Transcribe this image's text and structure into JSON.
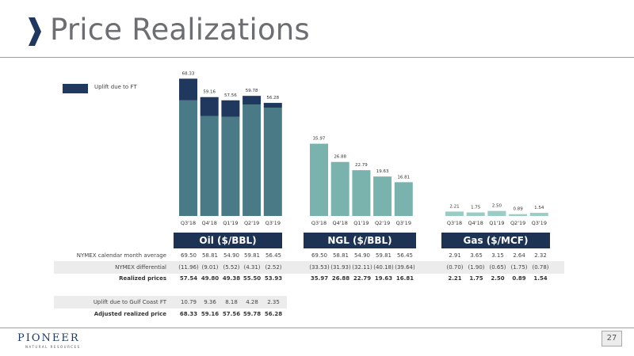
{
  "title": "Price Realizations",
  "legend": {
    "label": "Uplift due to FT",
    "color": "#20385e"
  },
  "colors": {
    "oil": "#4a7a85",
    "ngl": "#7ab3ad",
    "gas": "#98ccc4",
    "uplift": "#20385e",
    "panel": "#1e3354"
  },
  "chart_data": [
    {
      "type": "bar",
      "title": "Oil ($/BBL)",
      "categories": [
        "Q3'18",
        "Q4'18",
        "Q1'19",
        "Q2'19",
        "Q3'19"
      ],
      "series": [
        {
          "name": "Realized prices",
          "values": [
            57.54,
            49.8,
            49.38,
            55.5,
            53.93
          ]
        },
        {
          "name": "Uplift due to FT",
          "values": [
            10.79,
            9.36,
            8.18,
            4.28,
            2.35
          ]
        }
      ],
      "totals": [
        "68.33",
        "59.16",
        "57.56",
        "59.78",
        "56.28"
      ],
      "stacked": true,
      "ylim": [
        0,
        70
      ]
    },
    {
      "type": "bar",
      "title": "NGL ($/BBL)",
      "categories": [
        "Q3'18",
        "Q4'18",
        "Q1'19",
        "Q2'19",
        "Q3'19"
      ],
      "values": [
        35.97,
        26.88,
        22.79,
        19.63,
        16.81
      ],
      "labels": [
        "35.97",
        "26.88",
        "22.79",
        "19.63",
        "16.81"
      ],
      "ylim": [
        0,
        70
      ]
    },
    {
      "type": "bar",
      "title": "Gas ($/MCF)",
      "categories": [
        "Q3'18",
        "Q4'18",
        "Q1'19",
        "Q2'19",
        "Q3'19"
      ],
      "values": [
        2.21,
        1.75,
        2.5,
        0.89,
        1.54
      ],
      "labels": [
        "2.21",
        "1.75",
        "2.50",
        "0.89",
        "1.54"
      ],
      "ylim": [
        0,
        70
      ]
    }
  ],
  "table": {
    "rows": [
      {
        "label": "NYMEX calendar month average",
        "bold": false,
        "oil": [
          "69.50",
          "58.81",
          "54.90",
          "59.81",
          "56.45"
        ],
        "ngl": [
          "69.50",
          "58.81",
          "54.90",
          "59.81",
          "56.45"
        ],
        "gas": [
          "2.91",
          "3.65",
          "3.15",
          "2.64",
          "2.32"
        ]
      },
      {
        "label": "NYMEX differential",
        "bold": false,
        "shade": true,
        "oil": [
          "(11.96)",
          "(9.01)",
          "(5.52)",
          "(4.31)",
          "(2.52)"
        ],
        "ngl": [
          "(33.53)",
          "(31.93)",
          "(32.11)",
          "(40.18)",
          "(39.64)"
        ],
        "gas": [
          "(0.70)",
          "(1.90)",
          "(0.65)",
          "(1.75)",
          "(0.78)"
        ]
      },
      {
        "label": "Realized prices",
        "bold": true,
        "oil": [
          "57.54",
          "49.80",
          "49.38",
          "55.50",
          "53.93"
        ],
        "ngl": [
          "35.97",
          "26.88",
          "22.79",
          "19.63",
          "16.81"
        ],
        "gas": [
          "2.21",
          "1.75",
          "2.50",
          "0.89",
          "1.54"
        ]
      }
    ],
    "rows2": [
      {
        "label": "Uplift due to Gulf Coast FT",
        "bold": false,
        "shade": true,
        "oil": [
          "10.79",
          "9.36",
          "8.18",
          "4.28",
          "2.35"
        ]
      },
      {
        "label": "Adjusted realized price",
        "bold": true,
        "oil": [
          "68.33",
          "59.16",
          "57.56",
          "59.78",
          "56.28"
        ]
      }
    ]
  },
  "footer": {
    "logo": "PIONEER",
    "logo_sub": "NATURAL RESOURCES",
    "page": "27"
  }
}
